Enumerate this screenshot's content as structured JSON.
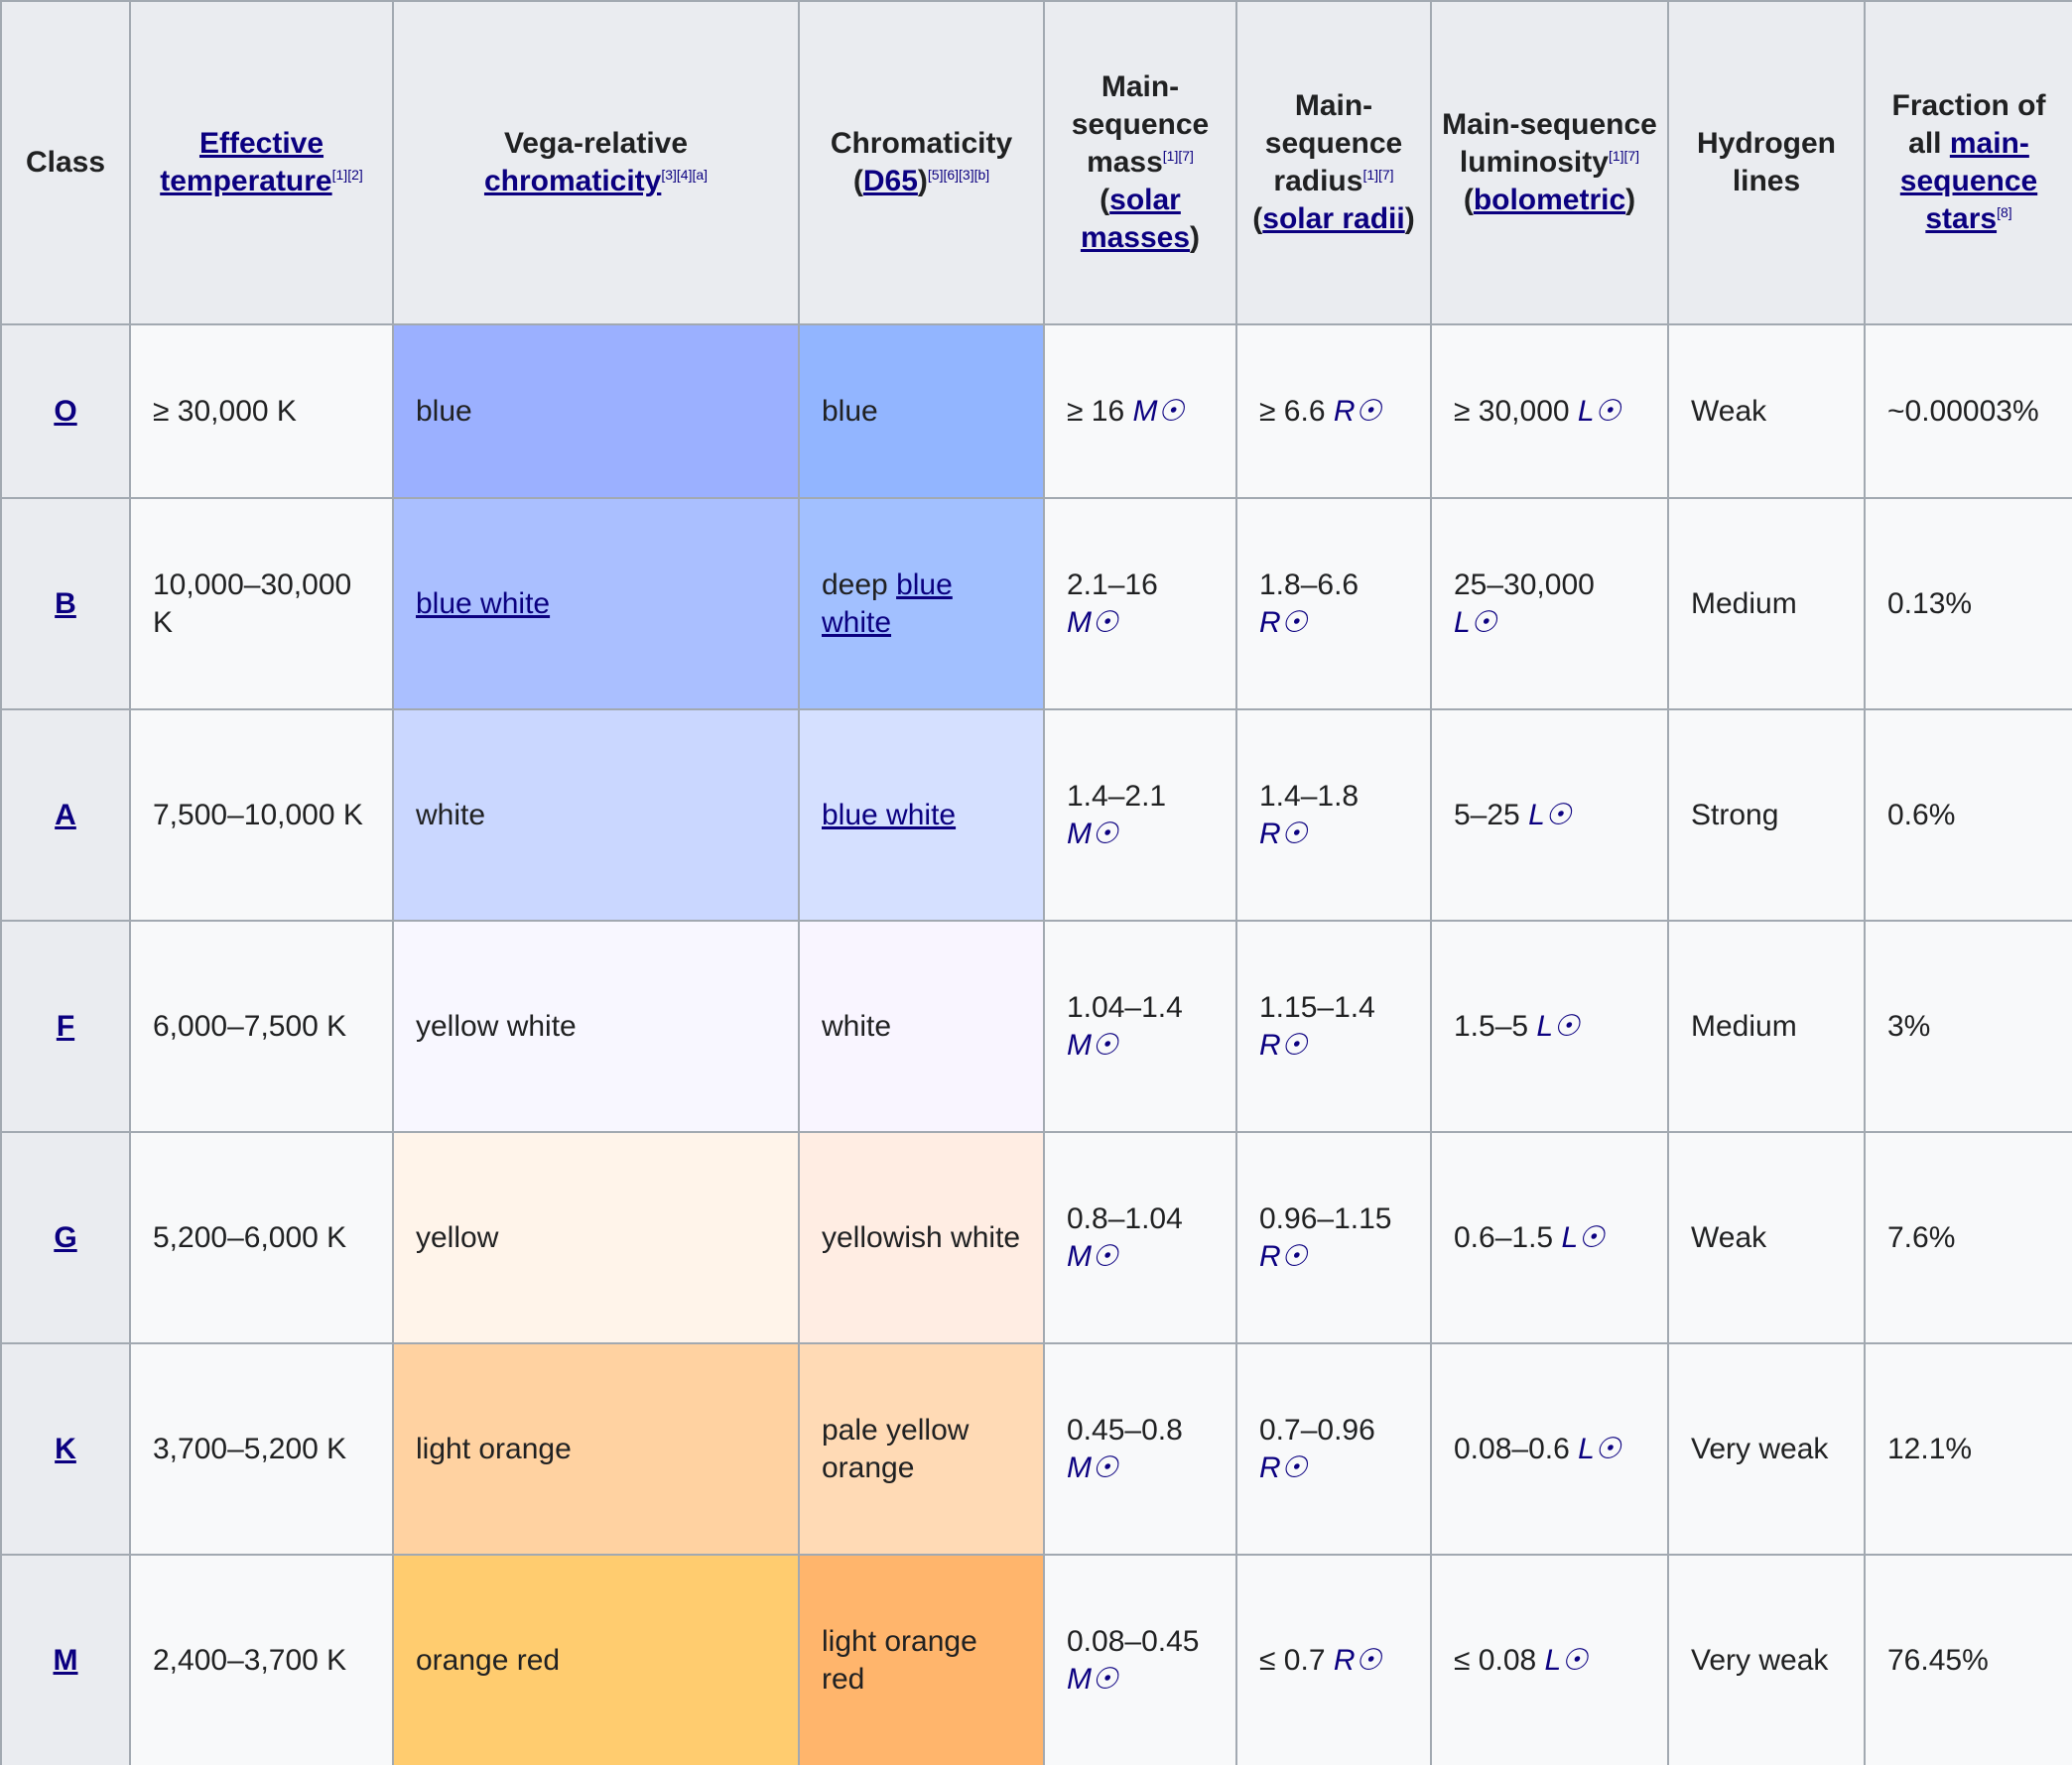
{
  "table": {
    "headers": [
      [
        "Class"
      ],
      [
        {
          "link": "Effective temperature"
        },
        {
          "sup": "[1][2]"
        }
      ],
      [
        "Vega-relative ",
        {
          "link": "chromaticity"
        },
        {
          "sup": "[3][4][a]"
        }
      ],
      [
        "Chromaticity (",
        {
          "link": "D65"
        },
        ")",
        {
          "sup": "[5][6][3][b]"
        }
      ],
      [
        "Main-sequence mass",
        {
          "sup": "[1][7]"
        },
        " (",
        {
          "link": "solar masses"
        },
        ")"
      ],
      [
        "Main-sequence radius",
        {
          "sup": "[1][7]"
        },
        " (",
        {
          "link": "solar radii"
        },
        ")"
      ],
      [
        "Main-sequence luminosity",
        {
          "sup": "[1][7]"
        },
        " (",
        {
          "link": "bolometric"
        },
        ")"
      ],
      [
        "Hydrogen lines"
      ],
      [
        "Fraction of all ",
        {
          "link": "main-sequence stars"
        },
        {
          "sup": "[8]"
        }
      ]
    ],
    "rows": [
      {
        "cells": [
          {
            "segments": [
              {
                "link": "O"
              }
            ]
          },
          {
            "segments": [
              "≥ 30,000 K"
            ]
          },
          {
            "segments": [
              "blue"
            ],
            "bg": "#9bb0ff"
          },
          {
            "segments": [
              "blue"
            ],
            "bg": "#92b5ff"
          },
          {
            "segments": [
              "≥ 16 ",
              {
                "sym": "M☉"
              }
            ]
          },
          {
            "segments": [
              "≥ 6.6 ",
              {
                "sym": "R☉"
              }
            ]
          },
          {
            "segments": [
              "≥ 30,000 ",
              {
                "sym": "L☉"
              }
            ]
          },
          {
            "segments": [
              "Weak"
            ]
          },
          {
            "segments": [
              "~0.00003%"
            ]
          }
        ]
      },
      {
        "cells": [
          {
            "segments": [
              {
                "link": "B"
              }
            ]
          },
          {
            "segments": [
              "10,000–30,000 K"
            ]
          },
          {
            "segments": [
              {
                "link": "blue white"
              }
            ],
            "bg": "#aabfff"
          },
          {
            "segments": [
              "deep ",
              {
                "link": "blue white"
              }
            ],
            "bg": "#a2c0ff"
          },
          {
            "segments": [
              "2.1–16 ",
              {
                "sym": "M☉"
              }
            ]
          },
          {
            "segments": [
              "1.8–6.6 ",
              {
                "sym": "R☉"
              }
            ]
          },
          {
            "segments": [
              "25–30,000 ",
              {
                "sym": "L☉"
              }
            ]
          },
          {
            "segments": [
              "Medium"
            ]
          },
          {
            "segments": [
              "0.13%"
            ]
          }
        ]
      },
      {
        "cells": [
          {
            "segments": [
              {
                "link": "A"
              }
            ]
          },
          {
            "segments": [
              "7,500–10,000 K"
            ]
          },
          {
            "segments": [
              "white"
            ],
            "bg": "#cad7ff"
          },
          {
            "segments": [
              {
                "link": "blue white"
              }
            ],
            "bg": "#d5e0ff"
          },
          {
            "segments": [
              "1.4–2.1 ",
              {
                "sym": "M☉"
              }
            ]
          },
          {
            "segments": [
              "1.4–1.8 ",
              {
                "sym": "R☉"
              }
            ]
          },
          {
            "segments": [
              "5–25 ",
              {
                "sym": "L☉"
              }
            ]
          },
          {
            "segments": [
              "Strong"
            ]
          },
          {
            "segments": [
              "0.6%"
            ]
          }
        ]
      },
      {
        "cells": [
          {
            "segments": [
              {
                "link": "F"
              }
            ]
          },
          {
            "segments": [
              "6,000–7,500 K"
            ]
          },
          {
            "segments": [
              "yellow white"
            ],
            "bg": "#f8f7ff"
          },
          {
            "segments": [
              "white"
            ],
            "bg": "#f9f5ff"
          },
          {
            "segments": [
              "1.04–1.4 ",
              {
                "sym": "M☉"
              }
            ]
          },
          {
            "segments": [
              "1.15–1.4 ",
              {
                "sym": "R☉"
              }
            ]
          },
          {
            "segments": [
              "1.5–5 ",
              {
                "sym": "L☉"
              }
            ]
          },
          {
            "segments": [
              "Medium"
            ]
          },
          {
            "segments": [
              "3%"
            ]
          }
        ]
      },
      {
        "cells": [
          {
            "segments": [
              {
                "link": "G"
              }
            ]
          },
          {
            "segments": [
              "5,200–6,000 K"
            ]
          },
          {
            "segments": [
              "yellow"
            ],
            "bg": "#fff4ea"
          },
          {
            "segments": [
              "yellowish white"
            ],
            "bg": "#ffede3"
          },
          {
            "segments": [
              "0.8–1.04 ",
              {
                "sym": "M☉"
              }
            ]
          },
          {
            "segments": [
              "0.96–1.15 ",
              {
                "sym": "R☉"
              }
            ]
          },
          {
            "segments": [
              "0.6–1.5 ",
              {
                "sym": "L☉"
              }
            ]
          },
          {
            "segments": [
              "Weak"
            ]
          },
          {
            "segments": [
              "7.6%"
            ]
          }
        ]
      },
      {
        "cells": [
          {
            "segments": [
              {
                "link": "K"
              }
            ]
          },
          {
            "segments": [
              "3,700–5,200 K"
            ]
          },
          {
            "segments": [
              "light orange"
            ],
            "bg": "#ffd2a1"
          },
          {
            "segments": [
              "pale yellow orange"
            ],
            "bg": "#ffdab5"
          },
          {
            "segments": [
              "0.45–0.8 ",
              {
                "sym": "M☉"
              }
            ]
          },
          {
            "segments": [
              "0.7–0.96 ",
              {
                "sym": "R☉"
              }
            ]
          },
          {
            "segments": [
              "0.08–0.6 ",
              {
                "sym": "L☉"
              }
            ]
          },
          {
            "segments": [
              "Very weak"
            ]
          },
          {
            "segments": [
              "12.1%"
            ]
          }
        ]
      },
      {
        "cells": [
          {
            "segments": [
              {
                "link": "M"
              }
            ]
          },
          {
            "segments": [
              "2,400–3,700 K"
            ]
          },
          {
            "segments": [
              "orange red"
            ],
            "bg": "#ffcc6f"
          },
          {
            "segments": [
              "light orange red"
            ],
            "bg": "#ffb56c"
          },
          {
            "segments": [
              "0.08–0.45 ",
              {
                "sym": "M☉"
              }
            ]
          },
          {
            "segments": [
              "≤ 0.7 ",
              {
                "sym": "R☉"
              }
            ]
          },
          {
            "segments": [
              "≤ 0.08 ",
              {
                "sym": "L☉"
              }
            ]
          },
          {
            "segments": [
              "Very weak"
            ]
          },
          {
            "segments": [
              "76.45%"
            ]
          }
        ]
      }
    ]
  }
}
